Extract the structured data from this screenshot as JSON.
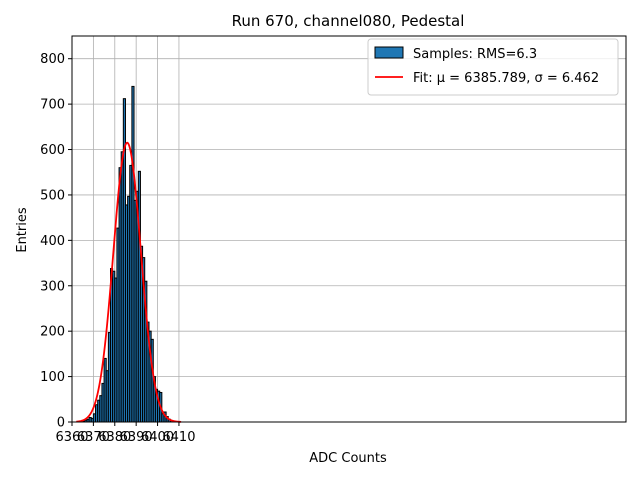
{
  "chart_data": {
    "type": "bar",
    "title": "Run 670, channel080, Pedestal",
    "xlabel": "ADC Counts",
    "ylabel": "Entries",
    "xlim": [
      6360,
      6619
    ],
    "ylim": [
      0,
      850
    ],
    "xticks": [
      6360,
      6370,
      6380,
      6390,
      6400,
      6410
    ],
    "yticks": [
      0,
      100,
      200,
      300,
      400,
      500,
      600,
      700,
      800
    ],
    "grid": true,
    "legend_placement": "top-right",
    "bin_width": 1,
    "bins": {
      "left_edges": [
        6365,
        6366,
        6367,
        6368,
        6369,
        6370,
        6371,
        6372,
        6373,
        6374,
        6375,
        6376,
        6377,
        6378,
        6379,
        6380,
        6381,
        6382,
        6383,
        6384,
        6385,
        6386,
        6387,
        6388,
        6389,
        6390,
        6391,
        6392,
        6393,
        6394,
        6395,
        6396,
        6397,
        6398,
        6399,
        6400,
        6401,
        6402,
        6403,
        6404,
        6405,
        6406
      ],
      "counts": [
        2,
        4,
        6,
        10,
        8,
        18,
        38,
        48,
        58,
        85,
        140,
        113,
        197,
        338,
        332,
        317,
        427,
        560,
        595,
        712,
        478,
        497,
        565,
        739,
        488,
        508,
        552,
        387,
        362,
        310,
        220,
        200,
        182,
        100,
        72,
        68,
        65,
        18,
        22,
        12,
        6,
        3
      ]
    },
    "series": [
      {
        "name": "Samples: RMS=6.3",
        "kind": "histogram",
        "color": "#1f77b4",
        "edgecolor": "#000000"
      },
      {
        "name": "Fit: μ = 6385.789, σ = 6.462",
        "kind": "line",
        "color": "#ff0000",
        "mu": 6385.789,
        "sigma": 6.462,
        "amplitude": 615,
        "x_range": [
          6362,
          6411
        ]
      }
    ],
    "legend": {
      "samples_label": "Samples: RMS=6.3",
      "fit_label": "Fit: μ = 6385.789, σ = 6.462"
    }
  }
}
